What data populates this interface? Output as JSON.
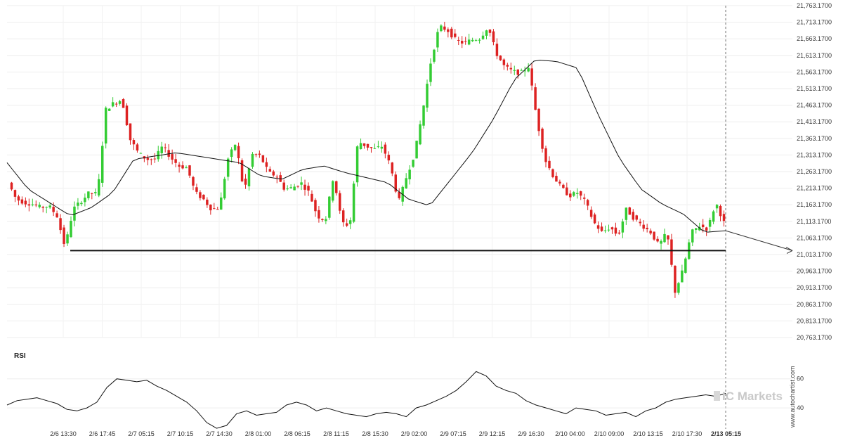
{
  "chart_data": [
    {
      "type": "candlestick",
      "title": "",
      "ylim": [
        20763.17,
        21763.17
      ],
      "yticks": [
        "21,763.1700",
        "21,713.1700",
        "21,663.1700",
        "21,613.1700",
        "21,563.1700",
        "21,513.1700",
        "21,463.1700",
        "21,413.1700",
        "21,363.1700",
        "21,313.1700",
        "21,263.1700",
        "21,213.1700",
        "21,163.1700",
        "21,113.1700",
        "21,063.1700",
        "21,013.1700",
        "20,963.1700",
        "20,913.1700",
        "20,863.1700",
        "20,813.1700",
        "20,763.1700"
      ],
      "xticks": [
        "2/6 13:30",
        "2/6 17:45",
        "2/7 05:15",
        "2/7 10:15",
        "2/7 14:30",
        "2/8 01:00",
        "2/8 06:15",
        "2/8 11:15",
        "2/8 15:30",
        "2/9 02:00",
        "2/9 07:15",
        "2/9 12:15",
        "2/9 16:30",
        "2/10 04:00",
        "2/10 09:00",
        "2/10 13:15",
        "2/10 17:30",
        "2/13 05:15"
      ],
      "current_xtick": "2/13 05:15",
      "up_color": "#33cc33",
      "down_color": "#dd2222",
      "support_level": 21025,
      "forecast_end": 21025,
      "price_path": [
        21230,
        21180,
        21170,
        21165,
        21155,
        21160,
        21130,
        21035,
        21150,
        21175,
        21200,
        21195,
        21450,
        21470,
        21480,
        21360,
        21320,
        21300,
        21300,
        21340,
        21305,
        21280,
        21275,
        21200,
        21180,
        21150,
        21155,
        21300,
        21350,
        21200,
        21315,
        21310,
        21260,
        21250,
        21210,
        21215,
        21230,
        21200,
        21130,
        21115,
        21250,
        21110,
        21100,
        21355,
        21340,
        21330,
        21340,
        21280,
        21170,
        21250,
        21320,
        21450,
        21600,
        21700,
        21690,
        21660,
        21650,
        21660,
        21665,
        21700,
        21620,
        21580,
        21565,
        21560,
        21580,
        21420,
        21300,
        21250,
        21215,
        21190,
        21200,
        21170,
        21110,
        21080,
        21095,
        21070,
        21150,
        21120,
        21100,
        21080,
        21040,
        21080,
        20900,
        20970,
        21080,
        21100,
        21090,
        21170,
        21110
      ],
      "ma_path": [
        21290,
        21210,
        21170,
        21130,
        21155,
        21200,
        21300,
        21310,
        21320,
        21310,
        21300,
        21290,
        21250,
        21240,
        21270,
        21280,
        21260,
        21245,
        21230,
        21180,
        21160,
        21240,
        21320,
        21420,
        21540,
        21600,
        21595,
        21575,
        21430,
        21300,
        21210,
        21165,
        21135,
        21080,
        21085
      ],
      "rsi": {
        "label": "RSI",
        "ylim": [
          28,
          70
        ],
        "yticks": [
          "60",
          "40"
        ],
        "values": [
          42,
          45,
          46,
          47,
          45,
          43,
          39,
          38,
          40,
          44,
          54,
          60,
          59,
          58,
          59,
          55,
          52,
          48,
          44,
          38,
          30,
          26,
          28,
          36,
          38,
          35,
          36,
          37,
          42,
          44,
          42,
          38,
          40,
          38,
          36,
          35,
          34,
          36,
          37,
          36,
          34,
          40,
          42,
          45,
          48,
          52,
          58,
          65,
          62,
          55,
          52,
          50,
          45,
          42,
          40,
          38,
          36,
          40,
          39,
          38,
          35,
          36,
          37,
          34,
          38,
          40,
          44,
          46,
          47,
          48,
          49,
          48,
          50
        ]
      }
    }
  ],
  "watermark": {
    "brand": "IC Markets",
    "side_text": "www.autochartist.com"
  }
}
